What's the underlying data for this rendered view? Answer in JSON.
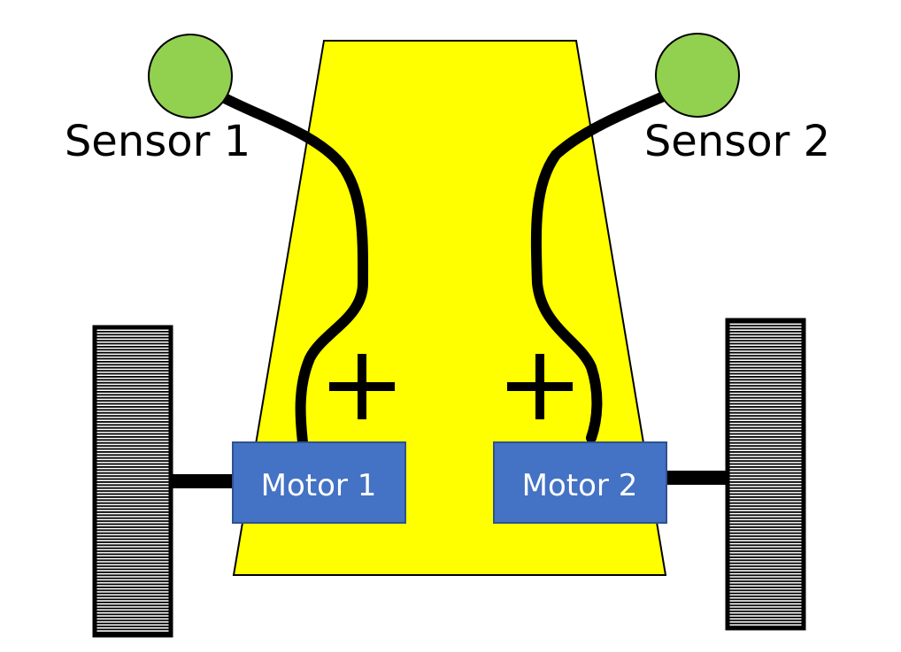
{
  "sensors": [
    {
      "label": "Sensor 1",
      "color": "#92d050"
    },
    {
      "label": "Sensor 2",
      "color": "#92d050"
    }
  ],
  "motors": [
    {
      "label": "Motor 1",
      "color": "#4472c4"
    },
    {
      "label": "Motor 2",
      "color": "#4472c4"
    }
  ],
  "connections": [
    {
      "sign": "+"
    },
    {
      "sign": "+"
    }
  ],
  "colors": {
    "body": "#ffff00",
    "wire": "#000000",
    "wheel_stripe": "#000000",
    "wheel_gap": "#ffffff"
  }
}
